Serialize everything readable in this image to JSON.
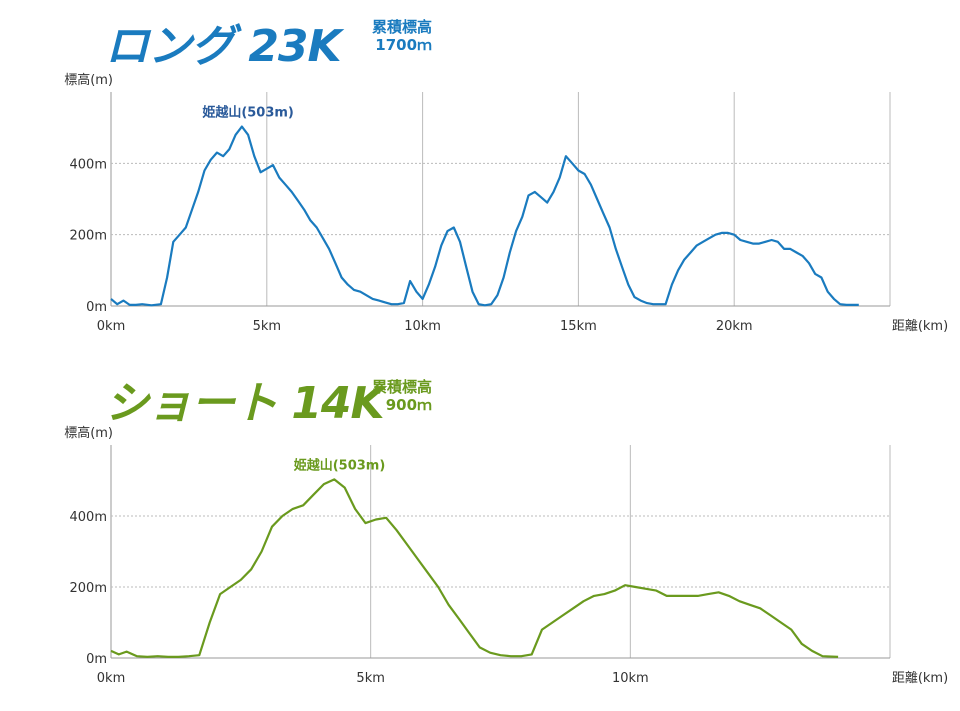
{
  "colors": {
    "long": "#1a7bbf",
    "short": "#6a9a1e",
    "label_long": "#2a5a9a",
    "grid": "#bbbbbb",
    "axis": "#333333"
  },
  "charts": {
    "long": {
      "title": "ロング 23K",
      "gain_label": "累積標高",
      "gain_value": "1700ｍ"
    },
    "short": {
      "title": "ショート 14K",
      "gain_label": "累積標高",
      "gain_value": "900ｍ"
    }
  },
  "chart_data": [
    {
      "type": "line",
      "title": "ロング 23K",
      "ylabel": "標高(m)",
      "xlabel": "距離(km)",
      "xlim": [
        0,
        25
      ],
      "ylim": [
        0,
        600
      ],
      "x_ticks": [
        0,
        5,
        10,
        15,
        20
      ],
      "x_tick_labels": [
        "0km",
        "5km",
        "10km",
        "15km",
        "20km"
      ],
      "y_ticks": [
        0,
        200,
        400
      ],
      "y_tick_labels": [
        "0m",
        "200m",
        "400m"
      ],
      "grid": true,
      "annotation": {
        "text": "姫越山(503m)",
        "x": 4.4,
        "y": 503
      },
      "series": [
        {
          "x": [
            0,
            0.2,
            0.4,
            0.6,
            0.8,
            1.0,
            1.3,
            1.6,
            1.8,
            2.0,
            2.2,
            2.4,
            2.6,
            2.8,
            3.0,
            3.2,
            3.4,
            3.6,
            3.8,
            4.0,
            4.2,
            4.4,
            4.6,
            4.8,
            5.0,
            5.2,
            5.4,
            5.6,
            5.8,
            6.0,
            6.2,
            6.4,
            6.6,
            6.8,
            7.0,
            7.2,
            7.4,
            7.6,
            7.8,
            8.0,
            8.2,
            8.4,
            8.6,
            8.8,
            9.0,
            9.2,
            9.4,
            9.6,
            9.8,
            10.0,
            10.2,
            10.4,
            10.6,
            10.8,
            11.0,
            11.2,
            11.4,
            11.6,
            11.8,
            12.0,
            12.2,
            12.4,
            12.6,
            12.8,
            13.0,
            13.2,
            13.4,
            13.6,
            13.8,
            14.0,
            14.2,
            14.4,
            14.6,
            14.8,
            15.0,
            15.2,
            15.4,
            15.6,
            15.8,
            16.0,
            16.2,
            16.4,
            16.6,
            16.8,
            17.0,
            17.2,
            17.4,
            17.6,
            17.8,
            18.0,
            18.2,
            18.4,
            18.6,
            18.8,
            19.0,
            19.2,
            19.4,
            19.6,
            19.8,
            20.0,
            20.2,
            20.4,
            20.6,
            20.8,
            21.0,
            21.2,
            21.4,
            21.6,
            21.8,
            22.0,
            22.2,
            22.4,
            22.6,
            22.8,
            23.0,
            23.2,
            23.4,
            23.6,
            23.8,
            24.0
          ],
          "y": [
            20,
            5,
            15,
            3,
            3,
            5,
            2,
            5,
            80,
            180,
            200,
            220,
            270,
            320,
            380,
            410,
            430,
            420,
            440,
            480,
            503,
            480,
            420,
            375,
            385,
            395,
            360,
            340,
            320,
            295,
            270,
            240,
            220,
            190,
            160,
            120,
            80,
            60,
            45,
            40,
            30,
            20,
            15,
            10,
            5,
            5,
            8,
            70,
            40,
            20,
            60,
            110,
            170,
            210,
            220,
            180,
            110,
            40,
            5,
            2,
            5,
            30,
            80,
            150,
            210,
            250,
            310,
            320,
            305,
            290,
            320,
            360,
            420,
            400,
            380,
            370,
            340,
            300,
            260,
            220,
            160,
            110,
            60,
            25,
            15,
            8,
            5,
            5,
            5,
            60,
            100,
            130,
            150,
            170,
            180,
            190,
            200,
            205,
            205,
            200,
            185,
            180,
            175,
            175,
            180,
            185,
            180,
            160,
            160,
            150,
            140,
            120,
            90,
            80,
            40,
            20,
            5,
            3,
            3,
            3
          ]
        }
      ]
    },
    {
      "type": "line",
      "title": "ショート 14K",
      "ylabel": "標高(m)",
      "xlabel": "距離(km)",
      "xlim": [
        0,
        15
      ],
      "ylim": [
        0,
        600
      ],
      "x_ticks": [
        0,
        5,
        10
      ],
      "x_tick_labels": [
        "0km",
        "5km",
        "10km"
      ],
      "y_ticks": [
        0,
        200,
        400
      ],
      "y_tick_labels": [
        "0m",
        "200m",
        "400m"
      ],
      "grid": true,
      "annotation": {
        "text": "姫越山(503m)",
        "x": 4.4,
        "y": 503
      },
      "series": [
        {
          "x": [
            0,
            0.15,
            0.3,
            0.5,
            0.7,
            0.9,
            1.1,
            1.3,
            1.5,
            1.7,
            1.9,
            2.1,
            2.3,
            2.5,
            2.7,
            2.9,
            3.1,
            3.3,
            3.5,
            3.7,
            3.9,
            4.1,
            4.3,
            4.5,
            4.7,
            4.9,
            5.1,
            5.3,
            5.5,
            5.7,
            5.9,
            6.1,
            6.3,
            6.5,
            6.7,
            6.9,
            7.1,
            7.3,
            7.5,
            7.7,
            7.9,
            8.1,
            8.3,
            8.5,
            8.7,
            8.9,
            9.1,
            9.3,
            9.5,
            9.7,
            9.9,
            10.1,
            10.3,
            10.5,
            10.7,
            10.9,
            11.1,
            11.3,
            11.5,
            11.7,
            11.9,
            12.1,
            12.3,
            12.5,
            12.7,
            12.9,
            13.1,
            13.3,
            13.5,
            13.7,
            14.0
          ],
          "y": [
            20,
            10,
            18,
            5,
            3,
            5,
            3,
            3,
            5,
            8,
            100,
            180,
            200,
            220,
            250,
            300,
            370,
            400,
            420,
            430,
            460,
            490,
            503,
            480,
            420,
            380,
            390,
            395,
            360,
            320,
            280,
            240,
            200,
            150,
            110,
            70,
            30,
            15,
            8,
            5,
            5,
            10,
            80,
            100,
            120,
            140,
            160,
            175,
            180,
            190,
            205,
            200,
            195,
            190,
            175,
            175,
            175,
            175,
            180,
            185,
            175,
            160,
            150,
            140,
            120,
            100,
            80,
            40,
            20,
            5,
            3
          ]
        }
      ]
    }
  ]
}
